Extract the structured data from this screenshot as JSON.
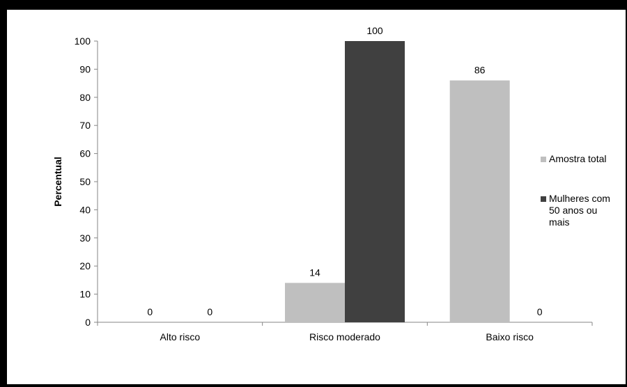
{
  "chart_data": {
    "type": "bar",
    "title": "",
    "xlabel": "",
    "ylabel": "Percentual",
    "ylim": [
      0,
      100
    ],
    "yticks": [
      0,
      10,
      20,
      30,
      40,
      50,
      60,
      70,
      80,
      90,
      100
    ],
    "categories": [
      "Alto risco",
      "Risco moderado",
      "Baixo risco"
    ],
    "series": [
      {
        "name": "Amostra total",
        "values": [
          0,
          14,
          86
        ],
        "color": "#BFBFBF"
      },
      {
        "name": "Mulheres com 50 anos ou mais",
        "values": [
          0,
          100,
          0
        ],
        "color": "#404040"
      }
    ],
    "legend_position": "right",
    "grid": false
  }
}
